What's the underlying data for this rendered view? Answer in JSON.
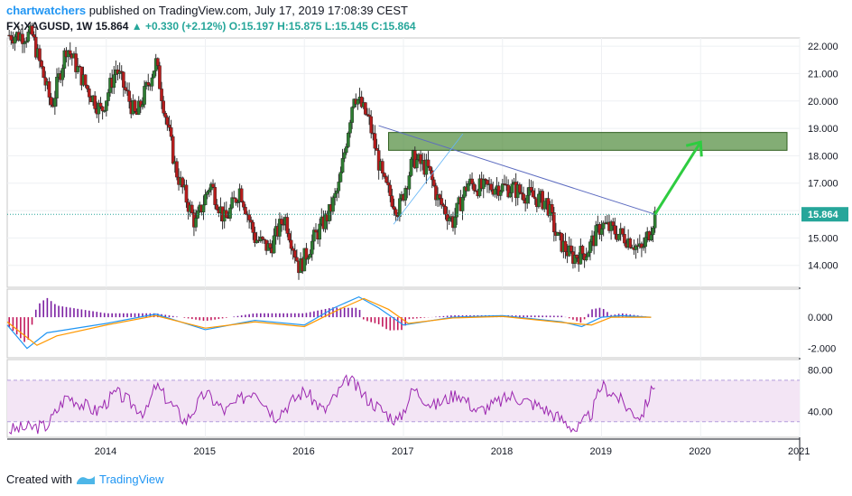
{
  "header": {
    "user": "chartwatchers",
    "published_text": "published on TradingView.com, July 17, 2019 17:08:39 CEST",
    "symbol": "FX:XAGUSD, 1W",
    "last": "15.864",
    "change": "+0.330 (+2.12%)",
    "ohlc": {
      "o": "O:15.197",
      "h": "H:15.875",
      "l": "L:15.145",
      "c": "C:15.864"
    }
  },
  "footer": {
    "created_with": "Created with",
    "brand": "TradingView"
  },
  "colors": {
    "up": "#26a69a",
    "down": "#b71c1c",
    "body_up": "#2e7d32",
    "trend": "#5c6bc0",
    "zone": "#4e8a3a",
    "arrow": "#2ecc40",
    "macd": "#2196f3",
    "signal": "#ff9800",
    "rsi": "#9c27b0",
    "rsi_band": "#f3e5f5"
  },
  "chart_data": [
    {
      "type": "candlestick",
      "title": "",
      "x_ticks": [
        "2014",
        "2015",
        "2016",
        "2017",
        "2018",
        "2019",
        "2020",
        "2021"
      ],
      "y_ticks": [
        "22.000",
        "21.000",
        "20.000",
        "19.000",
        "18.000",
        "17.000",
        "16.000",
        "15.000",
        "14.000"
      ],
      "ylim": [
        13.2,
        22.3
      ],
      "current_price_label": "15.864",
      "series": [
        {
          "name": "",
          "points": [
            {
              "t": 2013.25,
              "p": 22.4
            },
            {
              "t": 2013.45,
              "p": 19.8
            },
            {
              "t": 2013.6,
              "p": 22.0
            },
            {
              "t": 2013.8,
              "p": 20.5
            },
            {
              "t": 2013.95,
              "p": 19.6
            },
            {
              "t": 2014.1,
              "p": 21.2
            },
            {
              "t": 2014.3,
              "p": 19.4
            },
            {
              "t": 2014.5,
              "p": 21.4
            },
            {
              "t": 2014.7,
              "p": 17.5
            },
            {
              "t": 2014.9,
              "p": 15.5
            },
            {
              "t": 2015.05,
              "p": 17.0
            },
            {
              "t": 2015.2,
              "p": 15.6
            },
            {
              "t": 2015.35,
              "p": 16.8
            },
            {
              "t": 2015.5,
              "p": 15.0
            },
            {
              "t": 2015.65,
              "p": 14.6
            },
            {
              "t": 2015.8,
              "p": 15.8
            },
            {
              "t": 2015.95,
              "p": 13.9
            },
            {
              "t": 2016.1,
              "p": 15.0
            },
            {
              "t": 2016.25,
              "p": 15.9
            },
            {
              "t": 2016.35,
              "p": 16.9
            },
            {
              "t": 2016.5,
              "p": 20.3
            },
            {
              "t": 2016.65,
              "p": 19.3
            },
            {
              "t": 2016.8,
              "p": 17.0
            },
            {
              "t": 2016.95,
              "p": 16.0
            },
            {
              "t": 2017.1,
              "p": 17.9
            },
            {
              "t": 2017.25,
              "p": 17.5
            },
            {
              "t": 2017.35,
              "p": 16.4
            },
            {
              "t": 2017.5,
              "p": 15.6
            },
            {
              "t": 2017.65,
              "p": 17.0
            },
            {
              "t": 2017.8,
              "p": 16.8
            },
            {
              "t": 2017.95,
              "p": 16.9
            },
            {
              "t": 2018.1,
              "p": 16.8
            },
            {
              "t": 2018.3,
              "p": 16.5
            },
            {
              "t": 2018.45,
              "p": 16.3
            },
            {
              "t": 2018.55,
              "p": 15.0
            },
            {
              "t": 2018.7,
              "p": 14.3
            },
            {
              "t": 2018.85,
              "p": 14.5
            },
            {
              "t": 2019.0,
              "p": 15.5
            },
            {
              "t": 2019.15,
              "p": 15.2
            },
            {
              "t": 2019.3,
              "p": 14.9
            },
            {
              "t": 2019.4,
              "p": 14.5
            },
            {
              "t": 2019.48,
              "p": 15.2
            },
            {
              "t": 2019.54,
              "p": 15.864
            }
          ]
        }
      ],
      "annotations": {
        "resistance_zone": {
          "t_start": 2016.85,
          "t_end": 2021.0,
          "p_low": 18.2,
          "p_high": 18.85
        },
        "trendline": {
          "t_start": 2016.75,
          "p_start": 19.1,
          "t_end": 2019.54,
          "p_end": 15.864
        },
        "forecast_arrow": {
          "t_start": 2019.54,
          "p_start": 15.864,
          "t_end": 2020.0,
          "p_end": 18.5
        }
      }
    },
    {
      "type": "line",
      "title": "",
      "y_ticks": [
        "0.000",
        "-2.000"
      ],
      "ylim": [
        -2.6,
        1.8
      ],
      "series": [
        {
          "name": "",
          "points": [
            [
              2013.0,
              -0.5
            ],
            [
              2013.2,
              -2.0
            ],
            [
              2013.4,
              -1.0
            ],
            [
              2014.0,
              -0.4
            ],
            [
              2014.5,
              0.2
            ],
            [
              2015.0,
              -0.8
            ],
            [
              2015.5,
              -0.2
            ],
            [
              2016.0,
              -0.5
            ],
            [
              2016.3,
              0.6
            ],
            [
              2016.55,
              1.3
            ],
            [
              2016.75,
              0.6
            ],
            [
              2017.0,
              -0.5
            ],
            [
              2017.5,
              0.0
            ],
            [
              2018.0,
              0.1
            ],
            [
              2018.6,
              -0.3
            ],
            [
              2018.8,
              -0.6
            ],
            [
              2019.0,
              0.0
            ],
            [
              2019.2,
              0.1
            ],
            [
              2019.5,
              0.0
            ]
          ]
        },
        {
          "name": "",
          "points": [
            [
              2013.0,
              -0.3
            ],
            [
              2013.3,
              -1.8
            ],
            [
              2013.5,
              -1.2
            ],
            [
              2014.0,
              -0.5
            ],
            [
              2014.5,
              0.1
            ],
            [
              2015.0,
              -0.7
            ],
            [
              2015.5,
              -0.3
            ],
            [
              2016.0,
              -0.6
            ],
            [
              2016.35,
              0.5
            ],
            [
              2016.6,
              1.2
            ],
            [
              2016.85,
              0.5
            ],
            [
              2017.05,
              -0.4
            ],
            [
              2017.5,
              -0.05
            ],
            [
              2018.0,
              0.05
            ],
            [
              2018.7,
              -0.4
            ],
            [
              2018.9,
              -0.5
            ],
            [
              2019.1,
              0.0
            ],
            [
              2019.5,
              0.0
            ]
          ]
        }
      ]
    },
    {
      "type": "line",
      "title": "",
      "y_ticks": [
        "80.00",
        "40.00"
      ],
      "ylim": [
        15,
        90
      ],
      "band": [
        30,
        70
      ],
      "series": [
        {
          "name": "",
          "points": [
            [
              2013.0,
              22
            ],
            [
              2013.4,
              26
            ],
            [
              2013.6,
              55
            ],
            [
              2013.9,
              40
            ],
            [
              2014.1,
              58
            ],
            [
              2014.4,
              38
            ],
            [
              2014.5,
              65
            ],
            [
              2014.8,
              30
            ],
            [
              2015.0,
              58
            ],
            [
              2015.2,
              40
            ],
            [
              2015.5,
              62
            ],
            [
              2015.7,
              35
            ],
            [
              2016.0,
              60
            ],
            [
              2016.2,
              40
            ],
            [
              2016.45,
              72
            ],
            [
              2016.6,
              55
            ],
            [
              2016.8,
              40
            ],
            [
              2016.95,
              30
            ],
            [
              2017.1,
              62
            ],
            [
              2017.3,
              45
            ],
            [
              2017.55,
              58
            ],
            [
              2017.75,
              40
            ],
            [
              2018.1,
              55
            ],
            [
              2018.4,
              44
            ],
            [
              2018.6,
              32
            ],
            [
              2018.75,
              22
            ],
            [
              2018.9,
              38
            ],
            [
              2019.0,
              65
            ],
            [
              2019.15,
              55
            ],
            [
              2019.3,
              40
            ],
            [
              2019.4,
              35
            ],
            [
              2019.54,
              68
            ]
          ]
        }
      ]
    }
  ]
}
